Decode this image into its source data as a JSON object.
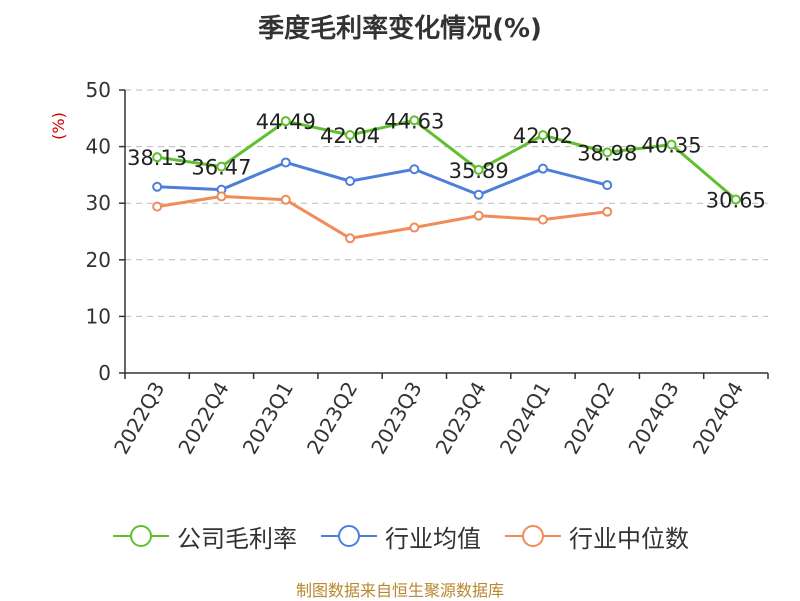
{
  "chart_data": {
    "type": "line",
    "title": "季度毛利率变化情况(%)",
    "ylabel": "(%)",
    "ylim": [
      0,
      50
    ],
    "yticks": [
      0,
      10,
      20,
      30,
      40,
      50
    ],
    "grid": true,
    "legend_position": "bottom",
    "categories": [
      "2022Q3",
      "2022Q4",
      "2023Q1",
      "2023Q2",
      "2023Q3",
      "2023Q4",
      "2024Q1",
      "2024Q2",
      "2024Q3",
      "2024Q4"
    ],
    "series": [
      {
        "name": "公司毛利率",
        "color": "#5fbf2c",
        "values": [
          38.13,
          36.47,
          44.49,
          42.04,
          44.63,
          35.89,
          42.02,
          38.98,
          40.35,
          30.65
        ],
        "labels": [
          "38.13",
          "36.47",
          "44.49",
          "42.04",
          "44.63",
          "35.89",
          "42.02",
          "38.98",
          "40.35",
          "30.65"
        ]
      },
      {
        "name": "行业均值",
        "color": "#4e7fd8",
        "values": [
          32.9,
          32.4,
          37.2,
          33.9,
          36.0,
          31.5,
          36.1,
          33.2,
          null,
          null
        ]
      },
      {
        "name": "行业中位数",
        "color": "#f08c5a",
        "values": [
          29.4,
          31.2,
          30.6,
          23.8,
          25.7,
          27.8,
          27.1,
          28.5,
          null,
          null
        ]
      }
    ]
  },
  "source": "制图数据来自恒生聚源数据库"
}
